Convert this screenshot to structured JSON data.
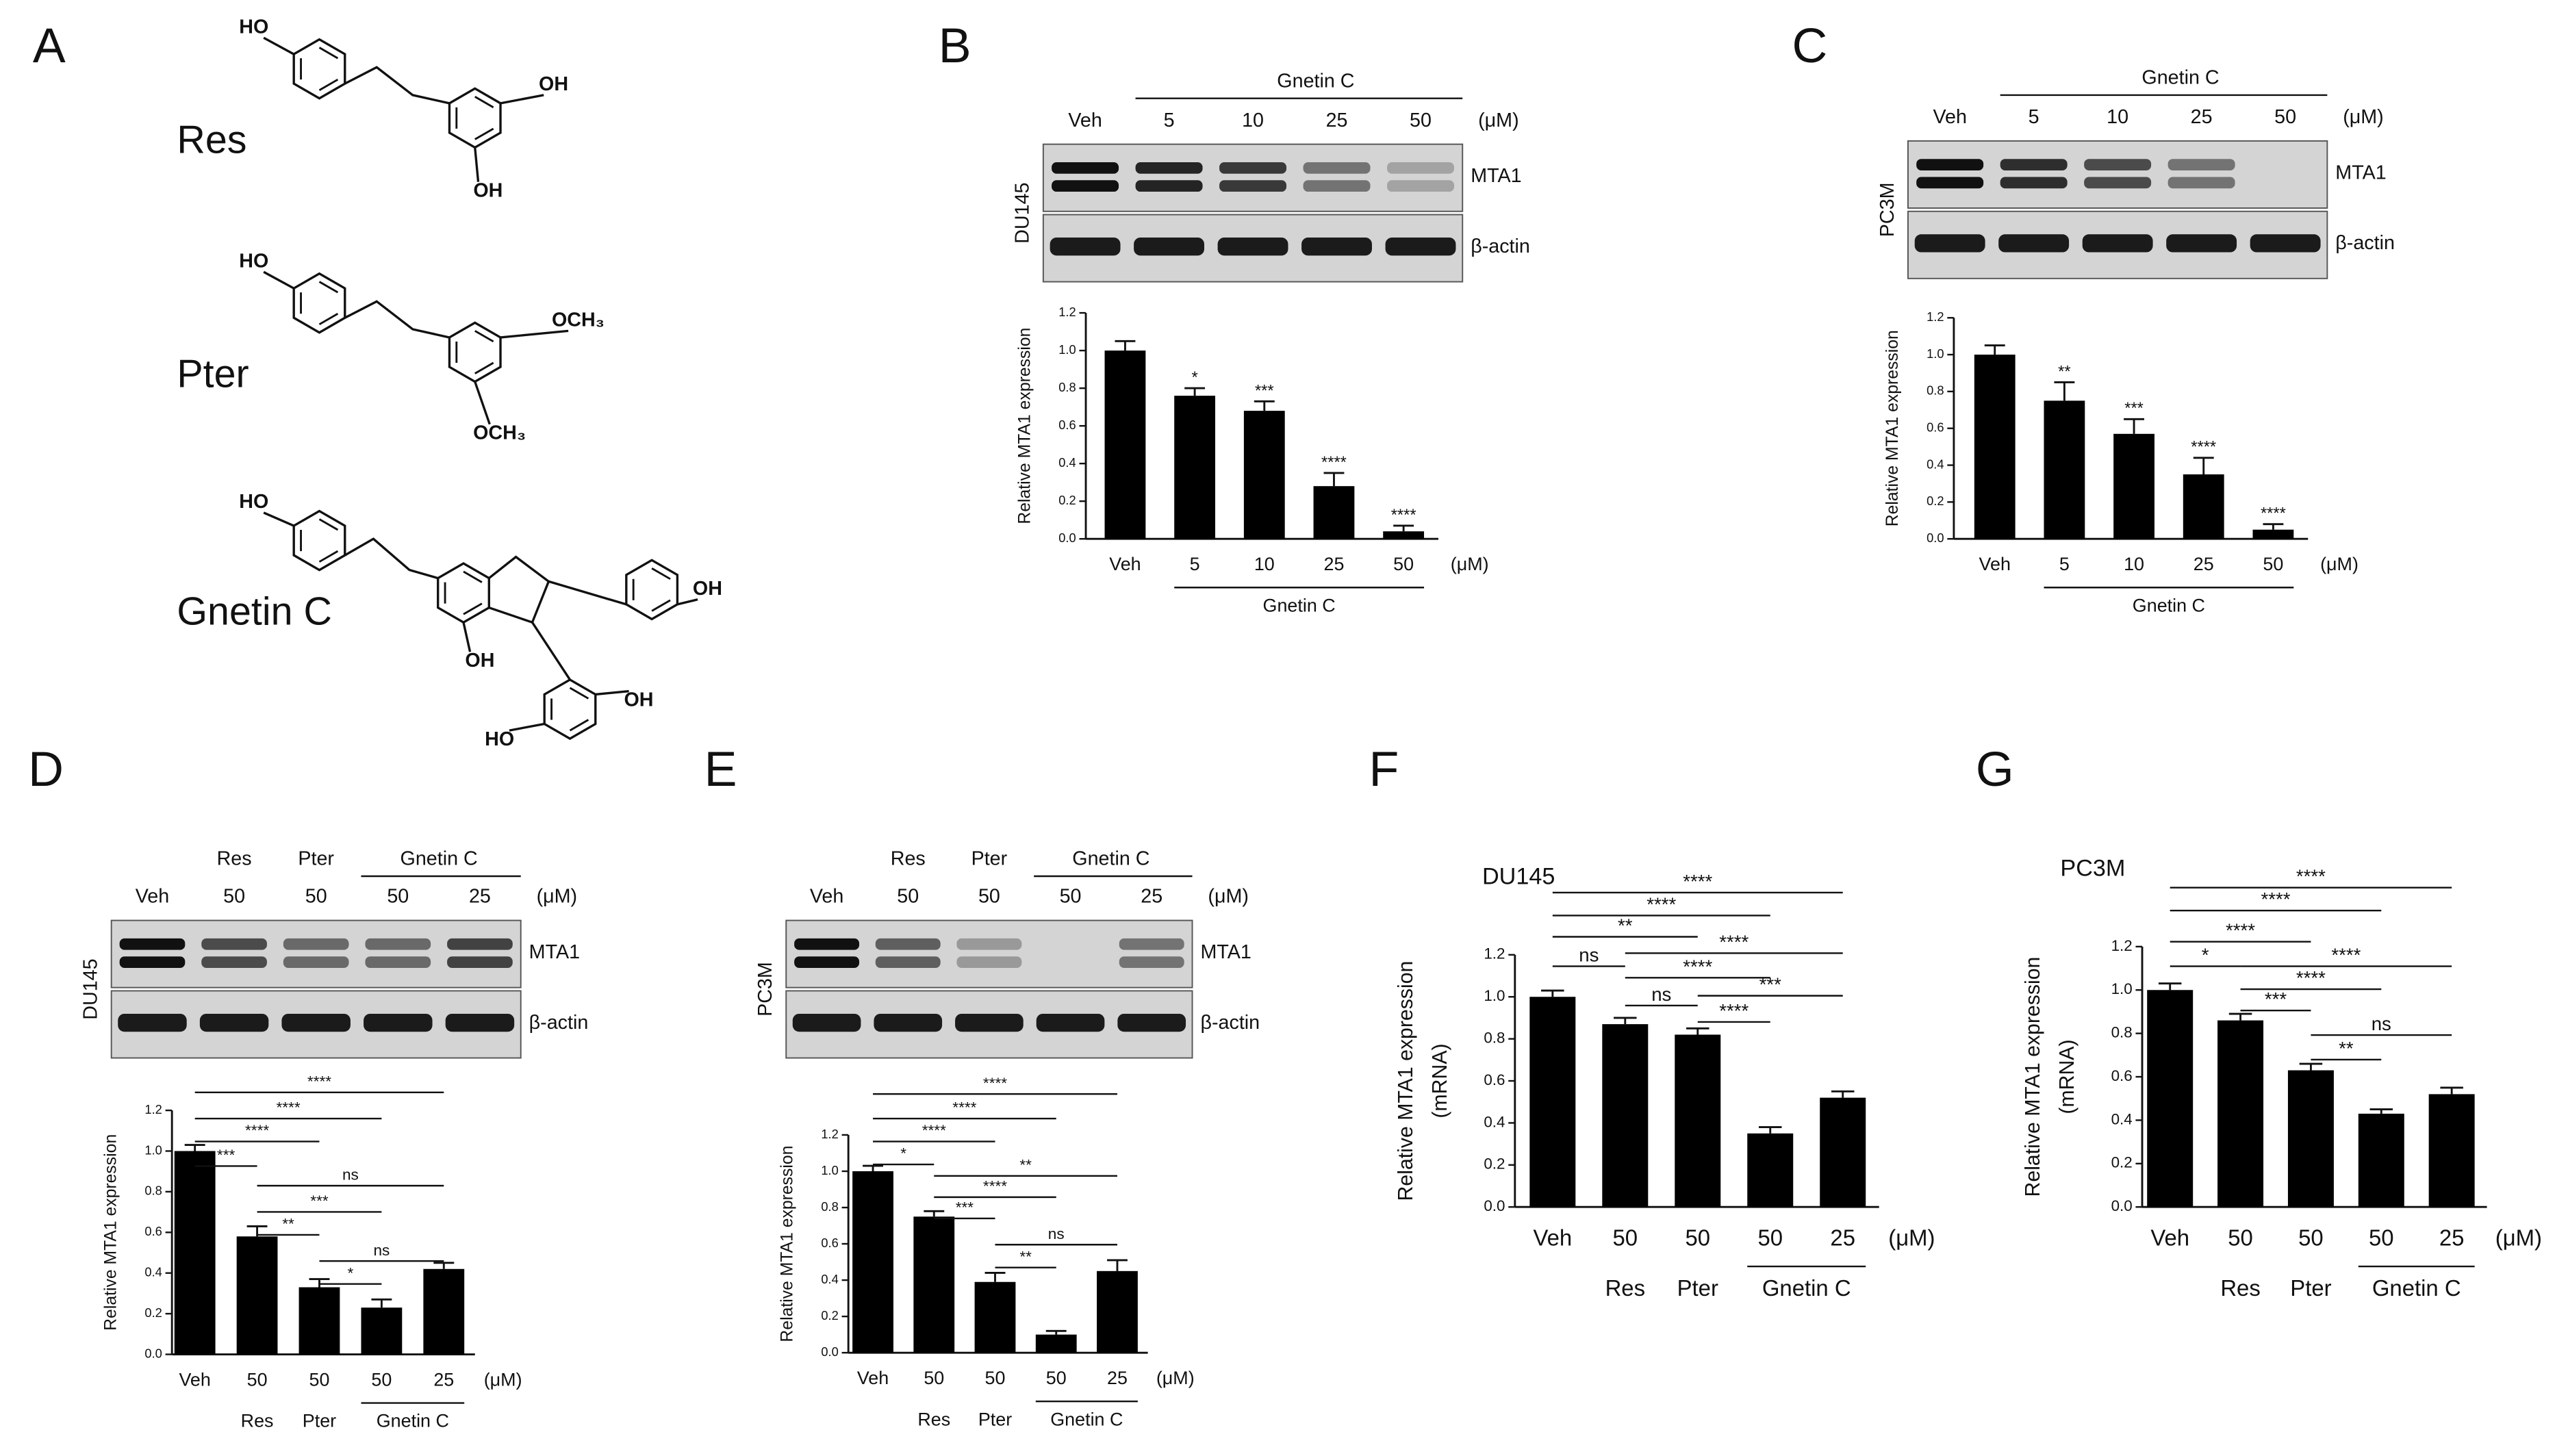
{
  "panel_labels": [
    "A",
    "B",
    "C",
    "D",
    "E",
    "F",
    "G"
  ],
  "structures": [
    {
      "name": "Res",
      "groups": [
        "HO",
        "OH",
        "OH"
      ]
    },
    {
      "name": "Pter",
      "groups": [
        "HO",
        "OCH₃",
        "OCH₃"
      ]
    },
    {
      "name": "Gnetin C",
      "groups": [
        "HO",
        "OH",
        "OH",
        "OH",
        "HO"
      ]
    }
  ],
  "blots": [
    {
      "cell_line": "DU145",
      "groups": [
        "Gnetin C"
      ],
      "lanes": [
        "Veh",
        "5",
        "10",
        "25",
        "50"
      ],
      "unit": "(μM)",
      "bands": [
        "MTA1",
        "β-actin"
      ]
    },
    {
      "cell_line": "PC3M",
      "groups": [
        "Gnetin C"
      ],
      "lanes": [
        "Veh",
        "5",
        "10",
        "25",
        "50"
      ],
      "unit": "(μM)",
      "bands": [
        "MTA1",
        "β-actin"
      ]
    },
    {
      "cell_line": "DU145",
      "groups": [
        "Res",
        "Pter",
        "Gnetin C"
      ],
      "lanes": [
        "Veh",
        "50",
        "50",
        "50",
        "25"
      ],
      "unit": "(μM)",
      "bands": [
        "MTA1",
        "β-actin"
      ]
    },
    {
      "cell_line": "PC3M",
      "groups": [
        "Res",
        "Pter",
        "Gnetin C"
      ],
      "lanes": [
        "Veh",
        "50",
        "50",
        "50",
        "25"
      ],
      "unit": "(μM)",
      "bands": [
        "MTA1",
        "β-actin"
      ]
    }
  ],
  "chart_data": [
    {
      "type": "bar",
      "y_label": [
        "Relative MTA1 expression"
      ],
      "categories": [
        "Veh",
        "5",
        "10",
        "25",
        "50"
      ],
      "unit": "(μM)",
      "groups": [
        "Gnetin C"
      ],
      "values": [
        1.0,
        0.76,
        0.68,
        0.28,
        0.04
      ],
      "errors": [
        0.05,
        0.04,
        0.05,
        0.07,
        0.03
      ],
      "annotations": [
        null,
        "*",
        "***",
        "****",
        "****"
      ],
      "color": "#000000",
      "ylim": [
        0,
        1.2
      ],
      "yticks": [
        {
          "value": 0,
          "label": "0.0"
        },
        0.2,
        0.4,
        0.6,
        0.8,
        {
          "value": 1,
          "label": "1.0"
        },
        1.2
      ]
    },
    {
      "type": "bar",
      "y_label": [
        "Relative MTA1 expression"
      ],
      "categories": [
        "Veh",
        "5",
        "10",
        "25",
        "50"
      ],
      "unit": "(μM)",
      "groups": [
        "Gnetin C"
      ],
      "values": [
        1.0,
        0.75,
        0.57,
        0.35,
        0.05
      ],
      "errors": [
        0.05,
        0.1,
        0.08,
        0.09,
        0.03
      ],
      "annotations": [
        null,
        "**",
        "***",
        "****",
        "****"
      ],
      "color": "#000000",
      "ylim": [
        0,
        1.2
      ],
      "yticks": [
        {
          "value": 0,
          "label": "0.0"
        },
        0.2,
        0.4,
        0.6,
        0.8,
        {
          "value": 1,
          "label": "1.0"
        },
        1.2
      ]
    },
    {
      "type": "bar",
      "y_label": [
        "Relative MTA1 expression"
      ],
      "categories": [
        "Veh",
        "50",
        "50",
        "50",
        "25"
      ],
      "unit": "(μM)",
      "groups": [
        "Res",
        "Pter",
        "Gnetin C"
      ],
      "values": [
        1.0,
        0.58,
        0.33,
        0.23,
        0.42
      ],
      "errors": [
        0.03,
        0.05,
        0.04,
        0.04,
        0.03
      ],
      "comparisons": [
        "****",
        "****",
        "****",
        "***",
        "ns",
        "***",
        "**",
        "ns",
        "*"
      ],
      "color": "#000000",
      "ylim": [
        0,
        1.2
      ],
      "yticks": [
        {
          "value": 0,
          "label": "0.0"
        },
        0.2,
        0.4,
        0.6,
        0.8,
        {
          "value": 1,
          "label": "1.0"
        },
        1.2
      ]
    },
    {
      "type": "bar",
      "y_label": [
        "Relative MTA1 expression"
      ],
      "categories": [
        "Veh",
        "50",
        "50",
        "50",
        "25"
      ],
      "unit": "(μM)",
      "groups": [
        "Res",
        "Pter",
        "Gnetin C"
      ],
      "values": [
        1.0,
        0.75,
        0.39,
        0.1,
        0.45
      ],
      "errors": [
        0.03,
        0.03,
        0.05,
        0.02,
        0.06
      ],
      "comparisons": [
        "****",
        "****",
        "****",
        "*",
        "**",
        "****",
        "***",
        "ns",
        "**"
      ],
      "color": "#000000",
      "ylim": [
        0,
        1.2
      ],
      "yticks": [
        {
          "value": 0,
          "label": "0.0"
        },
        0.2,
        0.4,
        0.6,
        0.8,
        {
          "value": 1,
          "label": "1.0"
        },
        1.2
      ]
    },
    {
      "type": "bar",
      "title": "DU145",
      "y_label": [
        "Relative MTA1 expression",
        "(mRNA)"
      ],
      "categories": [
        "Veh",
        "50",
        "50",
        "50",
        "25"
      ],
      "unit": "(μM)",
      "groups": [
        "Res",
        "Pter",
        "Gnetin C"
      ],
      "values": [
        1.0,
        0.87,
        0.82,
        0.35,
        0.52
      ],
      "errors": [
        0.03,
        0.03,
        0.03,
        0.03,
        0.03
      ],
      "comparisons": [
        "****",
        "****",
        "**",
        "****",
        "ns",
        "****",
        "***",
        "ns",
        "****"
      ],
      "color": "#000000",
      "ylim": [
        0,
        1.2
      ],
      "yticks": [
        {
          "value": 0,
          "label": "0.0"
        },
        0.2,
        0.4,
        0.6,
        0.8,
        {
          "value": 1,
          "label": "1.0"
        },
        1.2
      ]
    },
    {
      "type": "bar",
      "title": "PC3M",
      "y_label": [
        "Relative MTA1 expression",
        "(mRNA)"
      ],
      "categories": [
        "Veh",
        "50",
        "50",
        "50",
        "25"
      ],
      "unit": "(μM)",
      "groups": [
        "Res",
        "Pter",
        "Gnetin C"
      ],
      "values": [
        1.0,
        0.86,
        0.63,
        0.43,
        0.52
      ],
      "errors": [
        0.03,
        0.03,
        0.03,
        0.02,
        0.03
      ],
      "comparisons": [
        "****",
        "****",
        "****",
        "*",
        "****",
        "****",
        "***",
        "ns",
        "**"
      ],
      "color": "#000000",
      "ylim": [
        0,
        1.2
      ],
      "yticks": [
        {
          "value": 0,
          "label": "0.0"
        },
        0.2,
        0.4,
        0.6,
        0.8,
        {
          "value": 1,
          "label": "1.0"
        },
        1.2
      ]
    }
  ]
}
